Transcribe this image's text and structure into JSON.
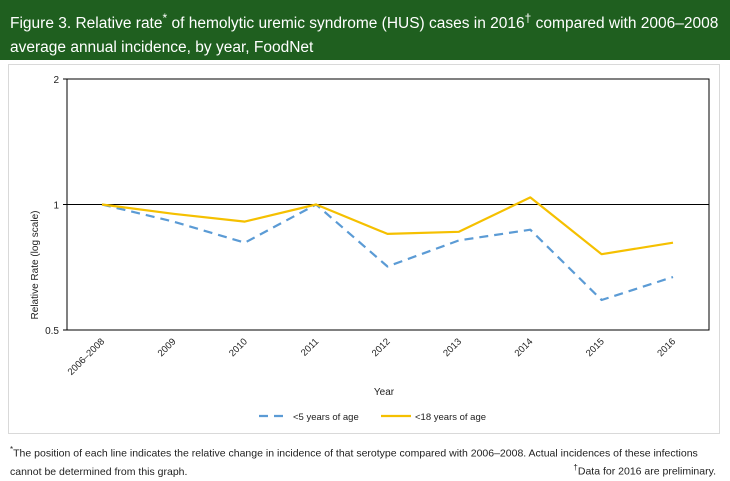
{
  "header": {
    "title_part1": "Figure 3. Relative rate",
    "title_mark1": "*",
    "title_part2": " of hemolytic uremic syndrome (HUS) cases in 2016",
    "title_mark2": "†",
    "title_part3": " compared with 2006–2008",
    "title_line2": "average  annual incidence, by year, FoodNet"
  },
  "chart_data": {
    "type": "line",
    "categories": [
      "2006–2008",
      "2009",
      "2010",
      "2011",
      "2012",
      "2013",
      "2014",
      "2015",
      "2016"
    ],
    "series": [
      {
        "name": "<5 years of age",
        "values": [
          1.0,
          0.91,
          0.81,
          1.0,
          0.71,
          0.82,
          0.87,
          0.59,
          0.67
        ],
        "color": "#5b9bd5",
        "style": "dashed"
      },
      {
        "name": "<18 years of age",
        "values": [
          1.0,
          0.95,
          0.91,
          1.0,
          0.85,
          0.86,
          1.04,
          0.76,
          0.81
        ],
        "color": "#f5c000",
        "style": "solid"
      }
    ],
    "xlabel": "Year",
    "ylabel": "Relative Rate (log scale)",
    "y_scale": "log",
    "ylim": [
      0.5,
      2
    ],
    "y_ticks": [
      "0.5",
      "1",
      "2"
    ],
    "reference_line": 1,
    "grid": false,
    "legend_position": "bottom"
  },
  "footnotes": {
    "mark1": "*",
    "text1": "The position of each line indicates the relative change in incidence of that serotype compared with 2006–2008. Actual incidences of these infections cannot be determined  from this graph.",
    "mark2": "†",
    "text2": "Data for 2016 are preliminary."
  }
}
